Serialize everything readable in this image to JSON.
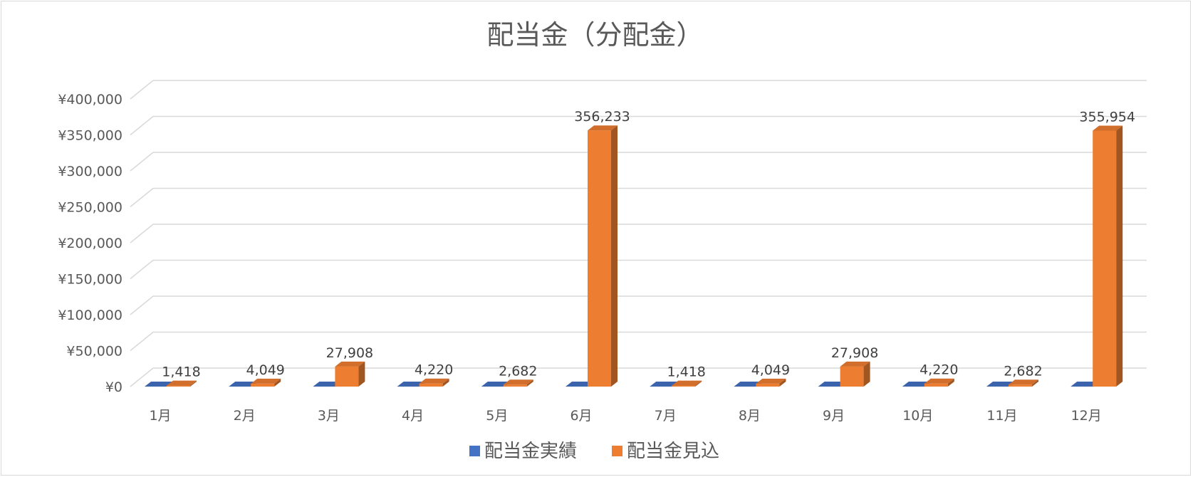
{
  "chart_data": {
    "type": "bar",
    "title": "配当金（分配金）",
    "categories": [
      "1月",
      "2月",
      "3月",
      "4月",
      "5月",
      "6月",
      "7月",
      "8月",
      "9月",
      "10月",
      "11月",
      "12月"
    ],
    "series": [
      {
        "name": "配当金実績",
        "values": [
          0,
          0,
          0,
          0,
          0,
          0,
          0,
          0,
          0,
          0,
          0,
          0
        ],
        "color": "#4472c4"
      },
      {
        "name": "配当金見込",
        "values": [
          1418,
          4049,
          27908,
          4220,
          2682,
          356233,
          1418,
          4049,
          27908,
          4220,
          2682,
          355954
        ],
        "color": "#ed7d31"
      }
    ],
    "data_labels": [
      "1,418",
      "4,049",
      "27,908",
      "4,220",
      "2,682",
      "356,233",
      "1,418",
      "4,049",
      "27,908",
      "4,220",
      "2,682",
      "355,954"
    ],
    "yticks": [
      "¥0",
      "¥50,000",
      "¥100,000",
      "¥150,000",
      "¥200,000",
      "¥250,000",
      "¥300,000",
      "¥350,000",
      "¥400,000"
    ],
    "ylim": [
      0,
      400000
    ],
    "grid": true,
    "legend_position": "bottom",
    "style": "3d-column"
  }
}
